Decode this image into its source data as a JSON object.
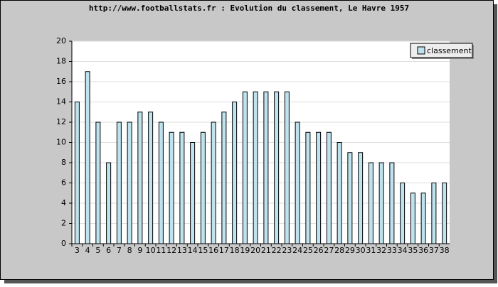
{
  "chart_data": {
    "type": "bar",
    "title": "http://www.footballstats.fr : Evolution du classement, Le Havre 1957",
    "categories": [
      "3",
      "4",
      "5",
      "6",
      "7",
      "8",
      "9",
      "10",
      "11",
      "12",
      "13",
      "14",
      "15",
      "16",
      "17",
      "18",
      "19",
      "20",
      "21",
      "22",
      "23",
      "24",
      "25",
      "26",
      "27",
      "28",
      "29",
      "30",
      "31",
      "32",
      "33",
      "34",
      "35",
      "36",
      "37",
      "38"
    ],
    "series": [
      {
        "name": "classement",
        "color": "#bfe3ee",
        "values": [
          14,
          17,
          12,
          8,
          12,
          12,
          13,
          13,
          12,
          11,
          11,
          10,
          11,
          12,
          13,
          14,
          15,
          15,
          15,
          15,
          15,
          12,
          11,
          11,
          11,
          10,
          9,
          9,
          8,
          8,
          8,
          6,
          5,
          5,
          6,
          6
        ]
      }
    ],
    "ylim": [
      0,
      20
    ],
    "yticks": [
      0,
      2,
      4,
      6,
      8,
      10,
      12,
      14,
      16,
      18,
      20
    ],
    "grid": true,
    "legend": "top-right"
  }
}
